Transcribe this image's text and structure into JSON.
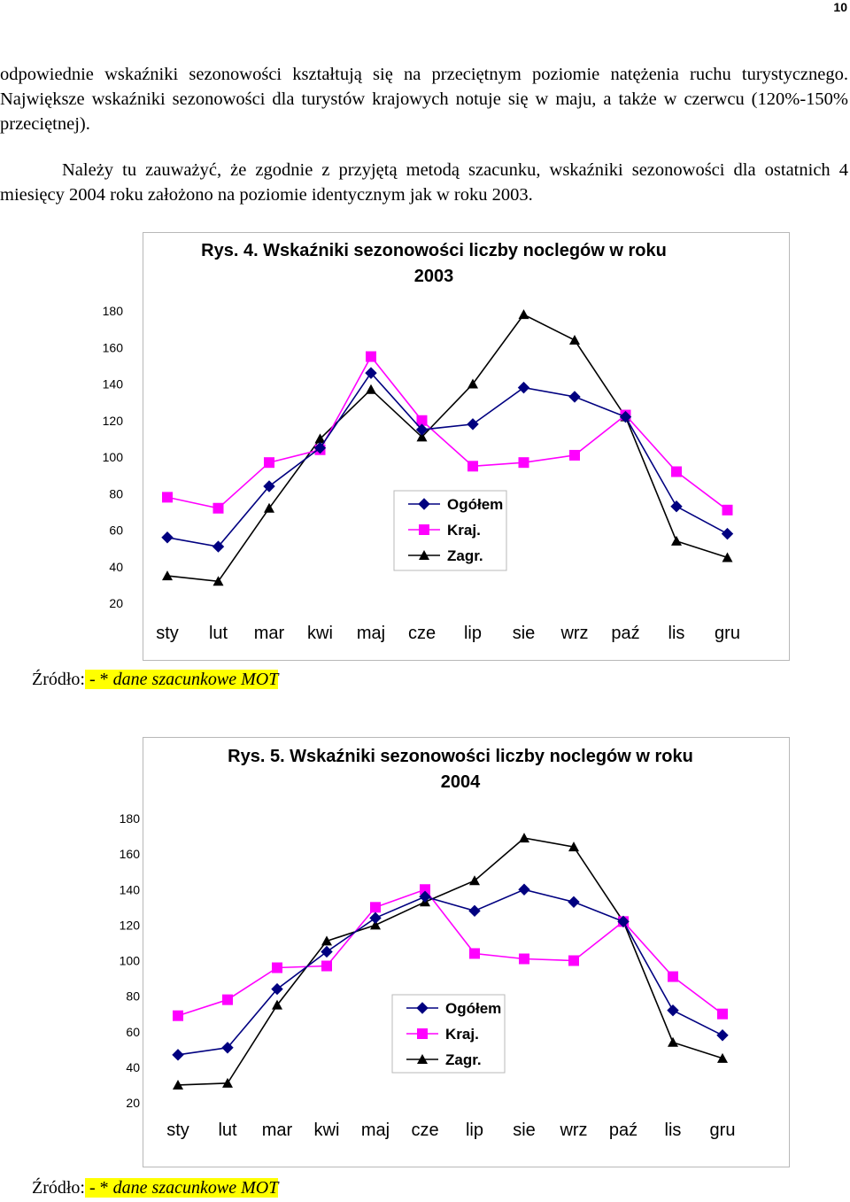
{
  "page_number": "10",
  "paragraphs": {
    "p1": "odpowiednie wskaźniki sezonowości kształtują się na przeciętnym poziomie natężenia ruchu turystycznego. Największe wskaźniki sezonowości dla turystów krajowych notuje się w maju, a także w czerwcu (120%-150% przeciętnej).",
    "p2": "Należy tu zauważyć, że zgodnie z przyjętą metodą szacunku, wskaźniki sezonowości dla ostatnich 4 miesięcy 2004 roku założono na poziomie identycznym jak w roku 2003."
  },
  "source": {
    "label": "Źródło:",
    "highlighted": " - * ",
    "italic": "dane szacunkowe MOT"
  },
  "colors": {
    "ogolem": "#000080",
    "kraj": "#ff00ff",
    "zagr": "#000000"
  },
  "chart_data": [
    {
      "type": "line",
      "title_line1": "Rys. 4. Wskaźniki sezonowości liczby noclegów w roku",
      "title_line2": "2003",
      "categories": [
        "sty",
        "lut",
        "mar",
        "kwi",
        "maj",
        "cze",
        "lip",
        "sie",
        "wrz",
        "paź",
        "lis",
        "gru"
      ],
      "y_ticks": [
        "20",
        "40",
        "60",
        "80",
        "100",
        "120",
        "140",
        "160",
        "180"
      ],
      "ylim": [
        20,
        180
      ],
      "legend_position": "center",
      "series": [
        {
          "name": "Ogółem",
          "marker": "diamond",
          "values": [
            56,
            51,
            84,
            105,
            146,
            115,
            118,
            138,
            133,
            122,
            73,
            58
          ]
        },
        {
          "name": "Kraj.",
          "marker": "square",
          "values": [
            78,
            72,
            97,
            104,
            155,
            120,
            95,
            97,
            101,
            123,
            92,
            71
          ]
        },
        {
          "name": "Zagr.",
          "marker": "triangle",
          "values": [
            35,
            32,
            72,
            110,
            137,
            111,
            140,
            178,
            164,
            122,
            54,
            45
          ]
        }
      ]
    },
    {
      "type": "line",
      "title_line1": "Rys. 5. Wskaźniki sezonowości liczby noclegów w roku",
      "title_line2": "2004",
      "categories": [
        "sty",
        "lut",
        "mar",
        "kwi",
        "maj",
        "cze",
        "lip",
        "sie",
        "wrz",
        "paź",
        "lis",
        "gru"
      ],
      "y_ticks": [
        "20",
        "40",
        "60",
        "80",
        "100",
        "120",
        "140",
        "160",
        "180"
      ],
      "ylim": [
        20,
        180
      ],
      "legend_position": "center",
      "series": [
        {
          "name": "Ogółem",
          "marker": "diamond",
          "values": [
            47,
            51,
            84,
            105,
            124,
            136,
            128,
            140,
            133,
            122,
            72,
            58
          ]
        },
        {
          "name": "Kraj.",
          "marker": "square",
          "values": [
            69,
            78,
            96,
            97,
            130,
            140,
            104,
            101,
            100,
            122,
            91,
            70
          ]
        },
        {
          "name": "Zagr.",
          "marker": "triangle",
          "values": [
            30,
            31,
            75,
            111,
            120,
            133,
            145,
            169,
            164,
            122,
            54,
            45
          ]
        }
      ]
    }
  ]
}
